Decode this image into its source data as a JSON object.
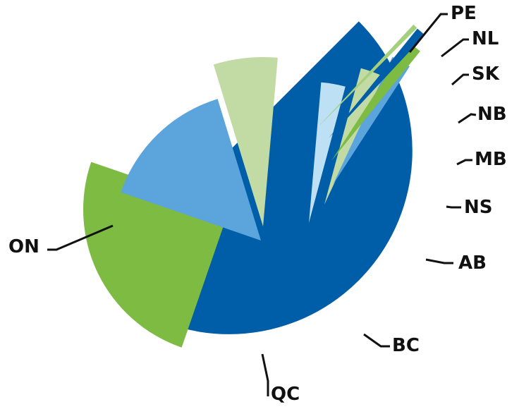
{
  "chart_data": {
    "type": "pie",
    "title": "",
    "legend": "none",
    "labels": [
      "ON",
      "QC",
      "BC",
      "AB",
      "NS",
      "MB",
      "NB",
      "SK",
      "NL",
      "PE"
    ],
    "values": [
      38.5,
      22.5,
      13.5,
      5.5,
      2.5,
      2.5,
      2.0,
      1.5,
      1.0,
      0.5
    ],
    "colors": [
      "#005EA8",
      "#7DBB42",
      "#5BA4DC",
      "#C2DBA5",
      "#BDE0F5",
      "#C2DBA5",
      "#5BA4DC",
      "#7DBB42",
      "#005EA8",
      "#A4D07E"
    ],
    "exploded": true
  }
}
